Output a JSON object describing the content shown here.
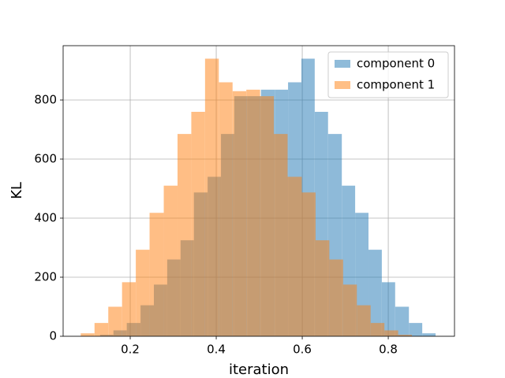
{
  "chart_data": {
    "type": "histogram",
    "xlabel": "iteration",
    "ylabel": "KL",
    "series": [
      {
        "name": "component 0",
        "color": "#1f77b4",
        "bins": [
          0.13,
          0.161,
          0.192,
          0.224,
          0.255,
          0.286,
          0.317,
          0.348,
          0.38,
          0.411,
          0.442,
          0.473,
          0.504,
          0.536,
          0.567,
          0.598,
          0.629,
          0.66,
          0.692,
          0.723,
          0.754,
          0.785,
          0.816,
          0.848,
          0.879,
          0.91
        ],
        "values": [
          5,
          20,
          45,
          105,
          175,
          260,
          325,
          487,
          540,
          685,
          813,
          813,
          835,
          835,
          860,
          940,
          760,
          685,
          510,
          418,
          293,
          183,
          100,
          45,
          10
        ]
      },
      {
        "name": "component 1",
        "color": "#ff7f0e",
        "bins": [
          0.085,
          0.117,
          0.149,
          0.181,
          0.213,
          0.245,
          0.278,
          0.31,
          0.342,
          0.374,
          0.406,
          0.438,
          0.47,
          0.502,
          0.534,
          0.566,
          0.599,
          0.631,
          0.663,
          0.695,
          0.727,
          0.759,
          0.791,
          0.823,
          0.855
        ],
        "values": [
          10,
          45,
          100,
          183,
          293,
          418,
          510,
          685,
          760,
          940,
          860,
          830,
          835,
          813,
          685,
          540,
          487,
          325,
          260,
          175,
          105,
          45,
          20,
          5
        ]
      }
    ],
    "xlim": [
      0.044,
      0.954
    ],
    "ylim": [
      0,
      984
    ],
    "xticks": [
      0.2,
      0.4,
      0.6,
      0.8
    ],
    "yticks": [
      0,
      200,
      400,
      600,
      800
    ],
    "grid": true,
    "legend": "upper right",
    "alpha": 0.5
  }
}
